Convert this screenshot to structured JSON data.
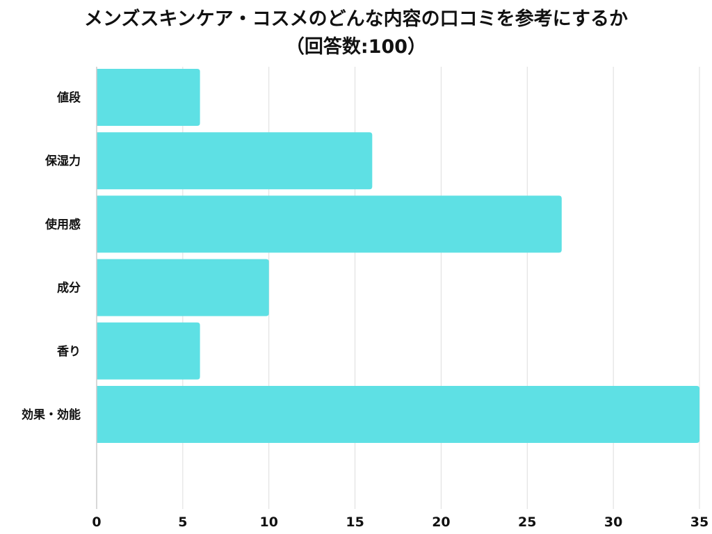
{
  "chart_data": {
    "type": "bar",
    "orientation": "horizontal",
    "title_line1": "メンズスキンケア・コスメのどんな内容の口コミを参考にするか",
    "title_line2": "（回答数:100）",
    "categories": [
      "値段",
      "保湿力",
      "使用感",
      "成分",
      "香り",
      "効果・効能"
    ],
    "values": [
      6,
      16,
      27,
      10,
      6,
      35
    ],
    "xlim": [
      0,
      35
    ],
    "xticks": [
      0,
      5,
      10,
      15,
      20,
      25,
      30,
      35
    ],
    "grid": true,
    "bar_color": "#5ee0e4",
    "grid_color": "#dddddd",
    "axis_color": "#cccccc"
  }
}
